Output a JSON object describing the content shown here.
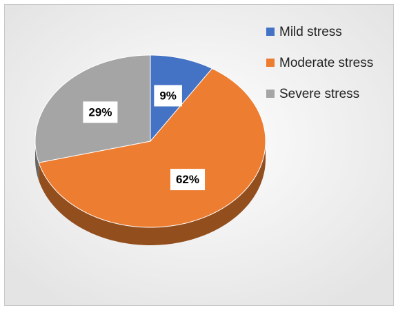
{
  "chart_data": {
    "type": "pie",
    "categories": [
      "Mild stress",
      "Moderate stress",
      "Severe stress"
    ],
    "values": [
      9,
      62,
      29
    ],
    "value_labels": [
      "9%",
      "62%",
      "29%"
    ],
    "colors": [
      "#4472c4",
      "#ed7d31",
      "#a5a5a5"
    ],
    "legend": "right"
  }
}
